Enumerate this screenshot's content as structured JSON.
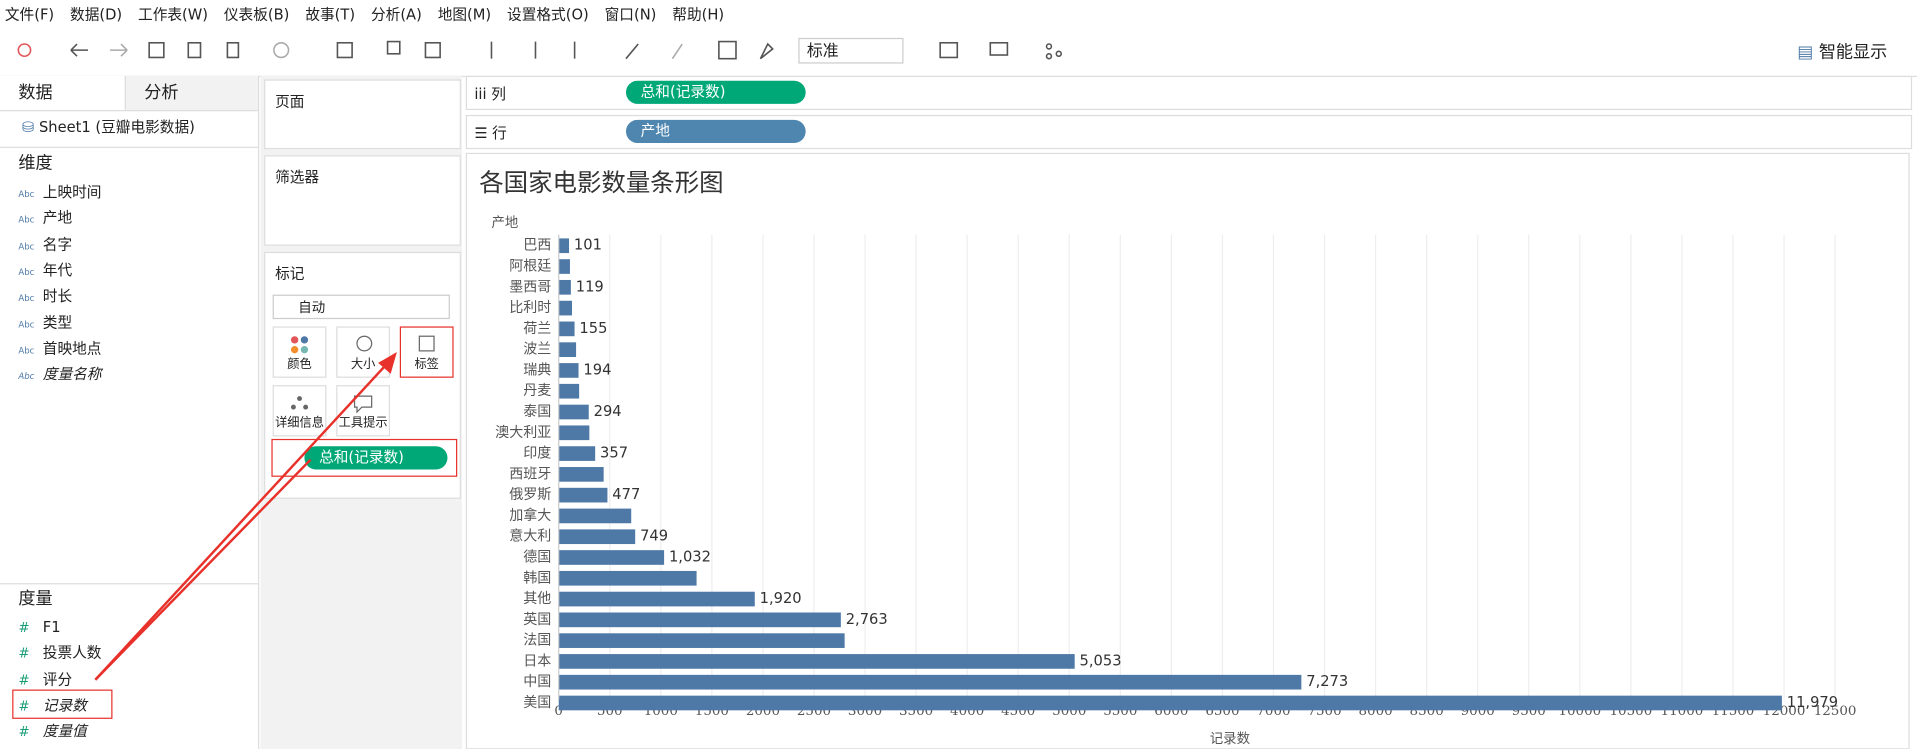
{
  "menu": [
    "文件(F)",
    "数据(D)",
    "工作表(W)",
    "仪表板(B)",
    "故事(T)",
    "分析(A)",
    "地图(M)",
    "设置格式(O)",
    "窗口(N)",
    "帮助(H)"
  ],
  "toolbar": {
    "view_size": "标准",
    "show_me": "智能显示"
  },
  "data_pane": {
    "tabs": [
      "数据",
      "分析"
    ],
    "source": "Sheet1 (豆瓣电影数据)",
    "dimensions_header": "维度",
    "dimension_icon": "Abc",
    "dimensions": [
      "上映时间",
      "产地",
      "名字",
      "年代",
      "时长",
      "类型",
      "首映地点",
      "度量名称"
    ],
    "measures_header": "度量",
    "measure_icon": "#",
    "measures": [
      "F1",
      "投票人数",
      "评分",
      "记录数",
      "度量值"
    ]
  },
  "cards": {
    "pages": "页面",
    "filters": "筛选器",
    "marks": "标记",
    "mark_type": "自动",
    "mark_buttons": [
      "颜色",
      "大小",
      "标签",
      "详细信息",
      "工具提示"
    ],
    "mark_pill": "总和(记录数)"
  },
  "shelves": {
    "columns_label": "列",
    "columns_pill": "总和(记录数)",
    "rows_label": "行",
    "rows_pill": "产地"
  },
  "chart_data": {
    "type": "bar",
    "orientation": "horizontal",
    "title": "各国家电影数量条形图",
    "y_label": "产地",
    "x_label": "记录数",
    "categories": [
      "巴西",
      "阿根廷",
      "墨西哥",
      "比利时",
      "荷兰",
      "波兰",
      "瑞典",
      "丹麦",
      "泰国",
      "澳大利亚",
      "印度",
      "西班牙",
      "俄罗斯",
      "加拿大",
      "意大利",
      "德国",
      "韩国",
      "其他",
      "英国",
      "法国",
      "日本",
      "中国",
      "美国"
    ],
    "values": [
      101,
      110,
      119,
      130,
      155,
      170,
      194,
      200,
      294,
      300,
      357,
      440,
      477,
      710,
      749,
      1032,
      1350,
      1920,
      2763,
      2800,
      5053,
      7273,
      11979
    ],
    "value_labels": [
      "101",
      null,
      "119",
      null,
      "155",
      null,
      "194",
      null,
      "294",
      null,
      "357",
      null,
      "477",
      null,
      "749",
      "1,032",
      null,
      "1,920",
      "2,763",
      null,
      "5,053",
      "7,273",
      "11,979"
    ],
    "color": "#4e79a7",
    "xlim": [
      0,
      12500
    ],
    "xticks": [
      0,
      500,
      1000,
      1500,
      2000,
      2500,
      3000,
      3500,
      4000,
      4500,
      5000,
      5500,
      6000,
      6500,
      7000,
      7500,
      8000,
      8500,
      9000,
      9500,
      10000,
      10500,
      11000,
      11500,
      12000,
      12500
    ],
    "grid": true
  }
}
